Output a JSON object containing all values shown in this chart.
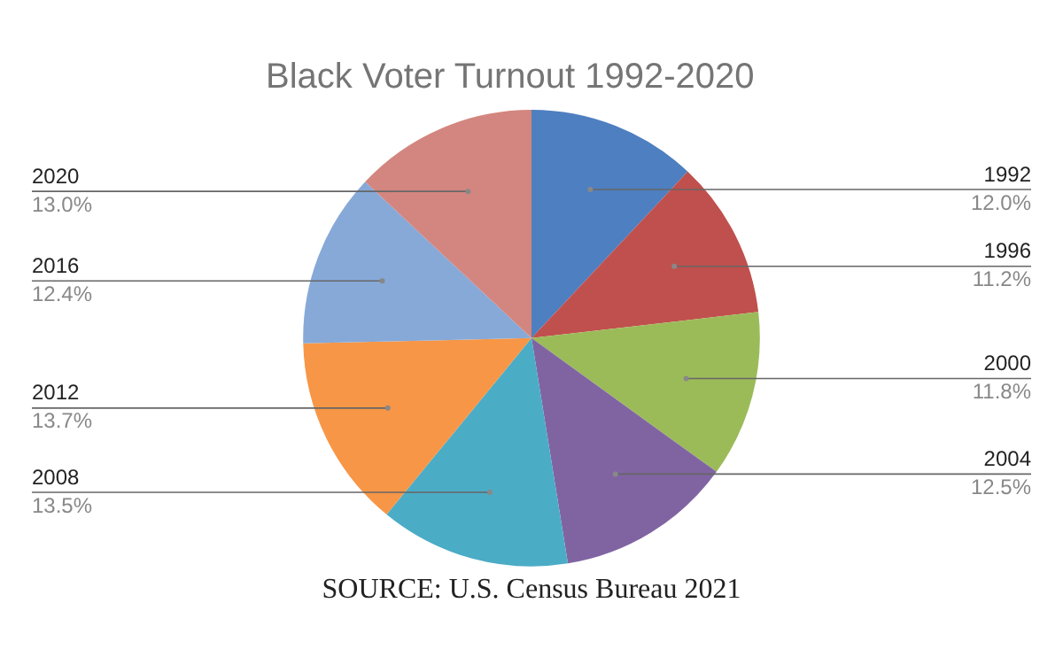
{
  "chart_data": {
    "type": "pie",
    "title": "Black Voter Turnout 1992-2020",
    "categories": [
      "1992",
      "1996",
      "2000",
      "2004",
      "2008",
      "2012",
      "2016",
      "2020"
    ],
    "values": [
      12.0,
      11.2,
      11.8,
      12.5,
      13.5,
      13.7,
      12.4,
      13.0
    ],
    "value_labels": [
      "12.0%",
      "11.2%",
      "11.8%",
      "12.5%",
      "13.5%",
      "13.7%",
      "12.4%",
      "13.0%"
    ],
    "colors": [
      "#4e7fc0",
      "#c0504d",
      "#9bbb59",
      "#8064a2",
      "#4bacc6",
      "#f79646",
      "#86a9d8",
      "#d3867f"
    ],
    "legend": false,
    "annotations": [
      "SOURCE: U.S. Census Bureau 2021"
    ]
  }
}
